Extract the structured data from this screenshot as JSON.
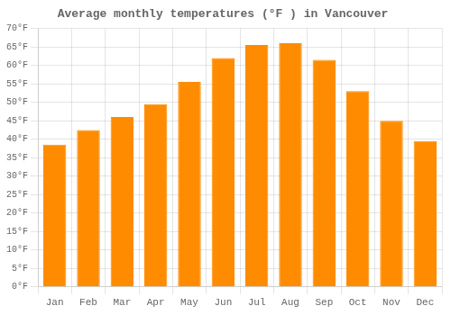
{
  "chart_data": {
    "type": "bar",
    "title": "Average monthly temperatures (°F ) in Vancouver",
    "categories": [
      "Jan",
      "Feb",
      "Mar",
      "Apr",
      "May",
      "Jun",
      "Jul",
      "Aug",
      "Sep",
      "Oct",
      "Nov",
      "Dec"
    ],
    "values": [
      38.5,
      42.5,
      46.0,
      49.5,
      55.5,
      62.0,
      65.5,
      66.0,
      61.5,
      53.0,
      45.0,
      39.5
    ],
    "color": "#FF8C00",
    "ylim": [
      0,
      70
    ],
    "yticks": [
      {
        "value": 0,
        "label": "0°F"
      },
      {
        "value": 5,
        "label": "5°F"
      },
      {
        "value": 10,
        "label": "10°F"
      },
      {
        "value": 15,
        "label": "15°F"
      },
      {
        "value": 20,
        "label": "20°F"
      },
      {
        "value": 25,
        "label": "25°F"
      },
      {
        "value": 30,
        "label": "30°F"
      },
      {
        "value": 35,
        "label": "35°F"
      },
      {
        "value": 40,
        "label": "40°F"
      },
      {
        "value": 45,
        "label": "45°F"
      },
      {
        "value": 50,
        "label": "50°F"
      },
      {
        "value": 55,
        "label": "55°F"
      },
      {
        "value": 60,
        "label": "60°F"
      },
      {
        "value": 65,
        "label": "65°F"
      },
      {
        "value": 70,
        "label": "70°F"
      }
    ],
    "grid": true
  }
}
